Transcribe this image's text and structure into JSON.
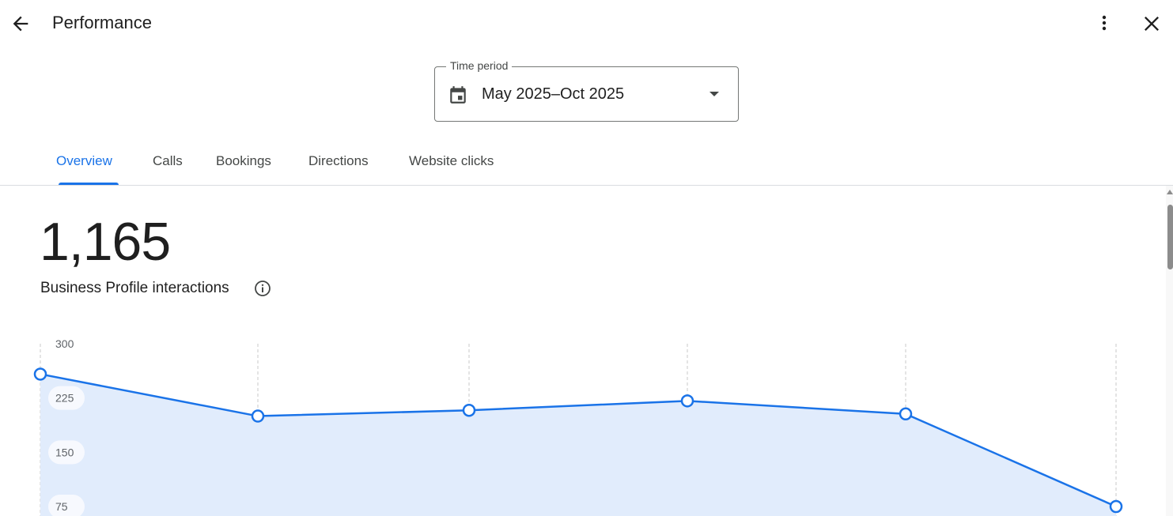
{
  "header": {
    "title": "Performance",
    "back_icon": "arrow-back-icon",
    "more_icon": "more-vert-icon",
    "close_icon": "close-icon"
  },
  "time_period": {
    "label": "Time period",
    "value": "May 2025–Oct 2025",
    "icon": "calendar-icon"
  },
  "tabs": [
    {
      "label": "Overview",
      "active": true
    },
    {
      "label": "Calls"
    },
    {
      "label": "Bookings"
    },
    {
      "label": "Directions"
    },
    {
      "label": "Website clicks"
    }
  ],
  "summary": {
    "total": "1,165",
    "metric_label": "Business Profile interactions",
    "info_icon": "info-icon"
  },
  "colors": {
    "accent": "#1a73e8",
    "area_fill": "#e1ecfc"
  },
  "chart_data": {
    "type": "area",
    "values": [
      258,
      200,
      208,
      221,
      203,
      75
    ],
    "yticks": [
      300,
      225,
      150,
      75
    ],
    "ylim": [
      0,
      300
    ],
    "grid": "vertical dashed",
    "title": "",
    "xlabel": "",
    "ylabel": ""
  }
}
